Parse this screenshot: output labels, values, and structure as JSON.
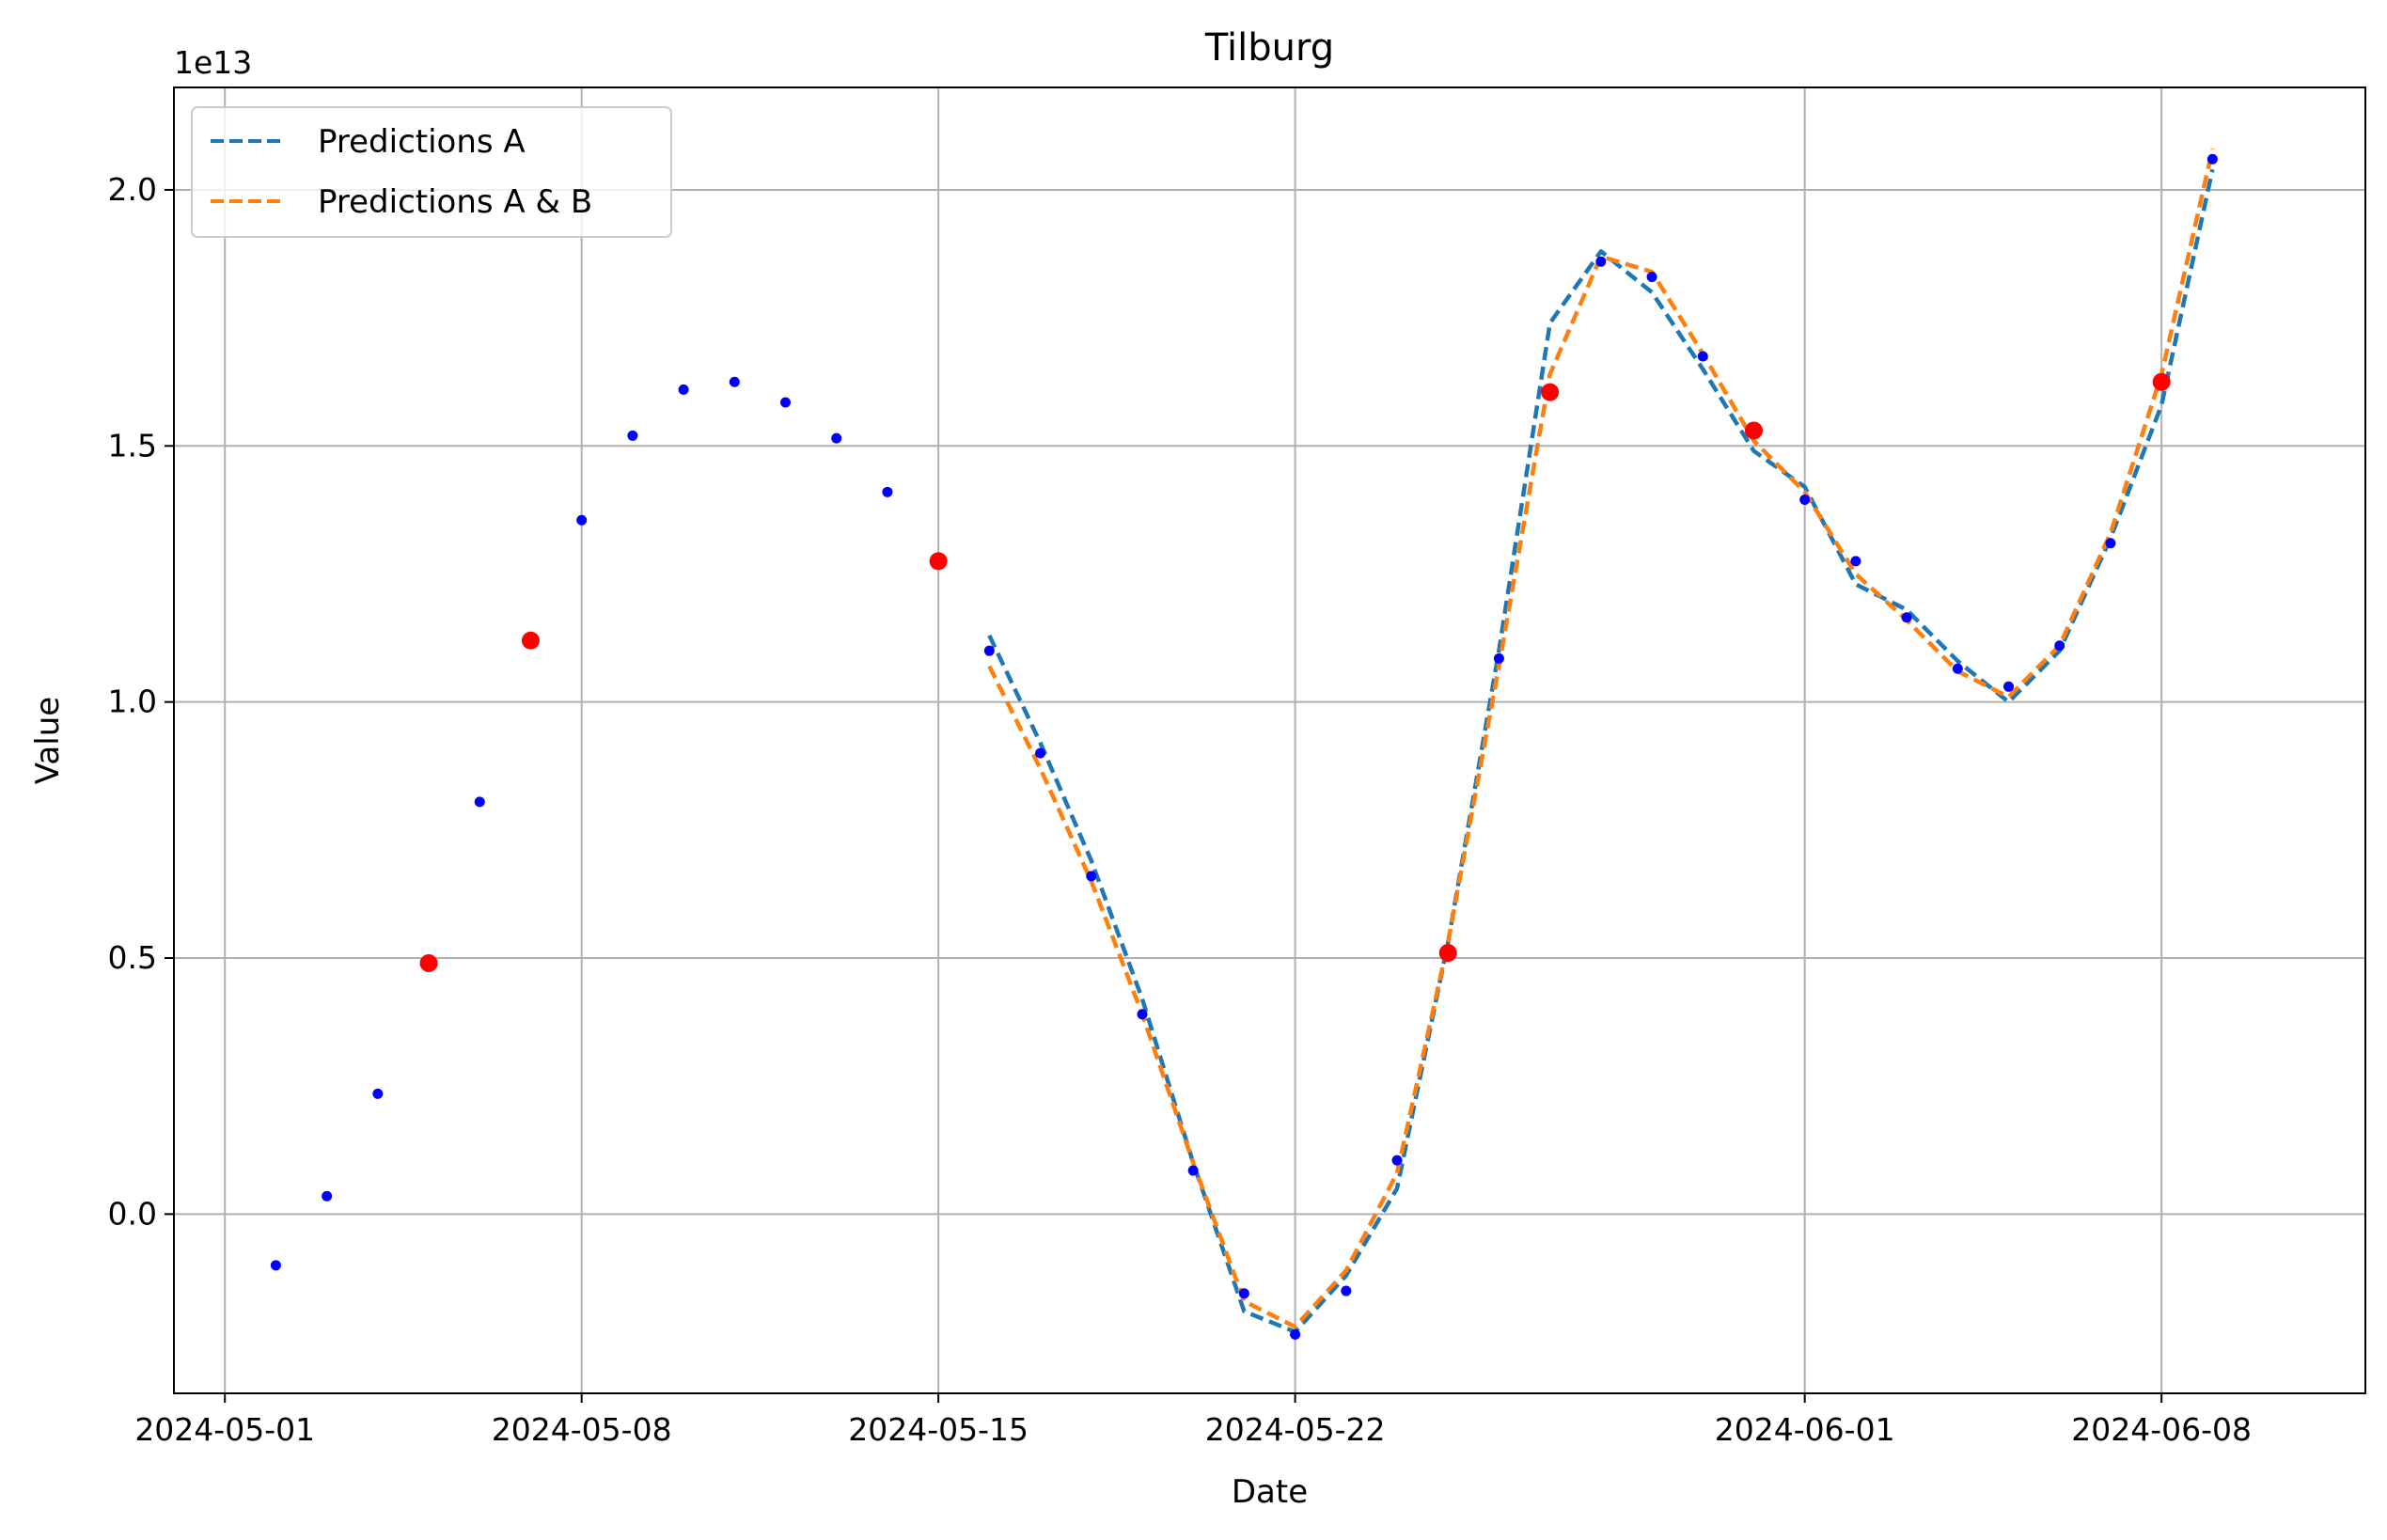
{
  "chart_data": {
    "type": "line",
    "title": "Tilburg",
    "xlabel": "Date",
    "ylabel": "Value",
    "y_offset_label": "1e13",
    "y_scale": 10000000000000.0,
    "xlim": [
      "2024-04-30",
      "2024-06-12"
    ],
    "ylim": [
      -3500000000000.0,
      22000000000000.0
    ],
    "grid": true,
    "legend_position": "upper-left",
    "x_ticks": [
      "2024-05-01",
      "2024-05-08",
      "2024-05-15",
      "2024-05-22",
      "2024-06-01",
      "2024-06-08"
    ],
    "y_ticks": [
      0.0,
      5000000000000.0,
      10000000000000.0,
      15000000000000.0,
      20000000000000.0
    ],
    "y_tick_labels": [
      "0.0",
      "0.5",
      "1.0",
      "1.5",
      "2.0"
    ],
    "colors": {
      "predictions_a": "#1f77b4",
      "predictions_ab": "#ff7f0e",
      "observed": "#0000ff",
      "highlighted": "#ff0000",
      "grid": "#b0b0b0"
    },
    "series": [
      {
        "name": "Predictions A",
        "style": "dashed",
        "x": [
          "2024-05-16",
          "2024-05-17",
          "2024-05-18",
          "2024-05-19",
          "2024-05-20",
          "2024-05-21",
          "2024-05-22",
          "2024-05-23",
          "2024-05-24",
          "2024-05-25",
          "2024-05-26",
          "2024-05-27",
          "2024-05-28",
          "2024-05-29",
          "2024-05-30",
          "2024-05-31",
          "2024-06-01",
          "2024-06-02",
          "2024-06-03",
          "2024-06-04",
          "2024-06-05",
          "2024-06-06",
          "2024-06-07",
          "2024-06-08",
          "2024-06-09"
        ],
        "y": [
          11300000000000.0,
          9200000000000.0,
          6900000000000.0,
          4200000000000.0,
          1000000000000.0,
          -1900000000000.0,
          -2300000000000.0,
          -1200000000000.0,
          500000000000.0,
          5300000000000.0,
          11000000000000.0,
          17400000000000.0,
          18800000000000.0,
          18000000000000.0,
          16500000000000.0,
          14900000000000.0,
          14200000000000.0,
          12300000000000.0,
          11800000000000.0,
          10800000000000.0,
          10000000000000.0,
          11000000000000.0,
          13200000000000.0,
          15800000000000.0,
          20400000000000.0
        ]
      },
      {
        "name": "Predictions A & B",
        "style": "dashed",
        "x": [
          "2024-05-16",
          "2024-05-17",
          "2024-05-18",
          "2024-05-19",
          "2024-05-20",
          "2024-05-21",
          "2024-05-22",
          "2024-05-23",
          "2024-05-24",
          "2024-05-25",
          "2024-05-26",
          "2024-05-27",
          "2024-05-28",
          "2024-05-29",
          "2024-05-30",
          "2024-05-31",
          "2024-06-01",
          "2024-06-02",
          "2024-06-03",
          "2024-06-04",
          "2024-06-05",
          "2024-06-06",
          "2024-06-07",
          "2024-06-08",
          "2024-06-09"
        ],
        "y": [
          10700000000000.0,
          8700000000000.0,
          6500000000000.0,
          3900000000000.0,
          1000000000000.0,
          -1700000000000.0,
          -2200000000000.0,
          -1100000000000.0,
          800000000000.0,
          5300000000000.0,
          10700000000000.0,
          16400000000000.0,
          18700000000000.0,
          18400000000000.0,
          16800000000000.0,
          15100000000000.0,
          14100000000000.0,
          12500000000000.0,
          11600000000000.0,
          10600000000000.0,
          10100000000000.0,
          11100000000000.0,
          13300000000000.0,
          16400000000000.0,
          20800000000000.0
        ]
      }
    ],
    "observed_points": {
      "x": [
        "2024-05-02",
        "2024-05-03",
        "2024-05-04",
        "2024-05-06",
        "2024-05-08",
        "2024-05-09",
        "2024-05-10",
        "2024-05-11",
        "2024-05-12",
        "2024-05-13",
        "2024-05-14",
        "2024-05-16",
        "2024-05-17",
        "2024-05-18",
        "2024-05-19",
        "2024-05-20",
        "2024-05-21",
        "2024-05-22",
        "2024-05-23",
        "2024-05-24",
        "2024-05-26",
        "2024-05-28",
        "2024-05-29",
        "2024-05-30",
        "2024-06-01",
        "2024-06-02",
        "2024-06-03",
        "2024-06-04",
        "2024-06-05",
        "2024-06-06",
        "2024-06-07",
        "2024-06-09"
      ],
      "y": [
        -1000000000000.0,
        350000000000.0,
        2350000000000.0,
        8050000000000.0,
        13550000000000.0,
        15200000000000.0,
        16100000000000.0,
        16250000000000.0,
        15850000000000.0,
        15150000000000.0,
        14100000000000.0,
        11000000000000.0,
        9000000000000.0,
        6600000000000.0,
        3900000000000.0,
        850000000000.0,
        -1550000000000.0,
        -2350000000000.0,
        -1500000000000.0,
        1050000000000.0,
        10850000000000.0,
        18600000000000.0,
        18300000000000.0,
        16750000000000.0,
        13950000000000.0,
        12750000000000.0,
        11650000000000.0,
        10650000000000.0,
        10300000000000.0,
        11100000000000.0,
        13100000000000.0,
        20600000000000.0
      ]
    },
    "highlighted_points": {
      "x": [
        "2024-05-05",
        "2024-05-07",
        "2024-05-15",
        "2024-05-25",
        "2024-05-27",
        "2024-05-31",
        "2024-06-08"
      ],
      "y": [
        4900000000000.0,
        11200000000000.0,
        12750000000000.0,
        5100000000000.0,
        16050000000000.0,
        15300000000000.0,
        16250000000000.0
      ]
    }
  }
}
